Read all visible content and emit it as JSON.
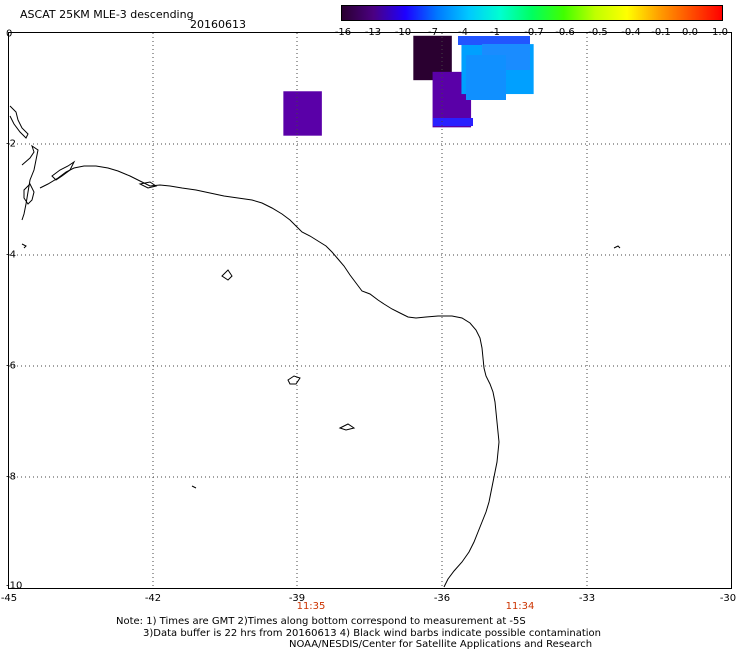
{
  "title": "ASCAT 25KM MLE-3 descending",
  "date": "20160613",
  "colorbar": {
    "labels": [
      "-16",
      "-13",
      "-10",
      "-7",
      "-4",
      "-1",
      "-0.7",
      "-0.6",
      "-0.5",
      "-0.4",
      "-0.1",
      "0.0",
      "1.0"
    ],
    "colors": [
      "#2a0030",
      "#4b0082",
      "#1e00ff",
      "#0078ff",
      "#00c8ff",
      "#00ffd0",
      "#00ff60",
      "#40ff00",
      "#c0ff00",
      "#ffff00",
      "#ffa000",
      "#ff5000",
      "#ff0000"
    ]
  },
  "axes": {
    "x_ticks": [
      "-45",
      "-42",
      "-39",
      "-36",
      "-33",
      "-30"
    ],
    "y_ticks": [
      "0",
      "-2",
      "-4",
      "-6",
      "-8",
      "-10"
    ],
    "times": [
      "11:35",
      "11:34"
    ]
  },
  "notes": {
    "line1": "Note: 1) Times are GMT 2)Times along bottom correspond to measurement at -5S",
    "line2": "3)Data buffer is 22 hrs from 20160613 4) Black wind barbs indicate possible contamination",
    "line3": "NOAA/NESDIS/Center for Satellite Applications and Research"
  },
  "data_cells": [
    {
      "lon_min": -39.3,
      "lon_max": -38.5,
      "lat_min": -1.85,
      "lat_max": -1.05,
      "value": -13
    },
    {
      "lon_min": -36.6,
      "lon_max": -35.8,
      "lat_min": -0.85,
      "lat_max": -0.05,
      "value": -16
    },
    {
      "lon_min": -36.2,
      "lon_max": -35.4,
      "lat_min": -1.7,
      "lat_max": -0.7,
      "value": -13
    },
    {
      "lon_min": -35.6,
      "lon_max": -34.1,
      "lat_min": -1.1,
      "lat_max": -0.2,
      "value": -4
    }
  ]
}
